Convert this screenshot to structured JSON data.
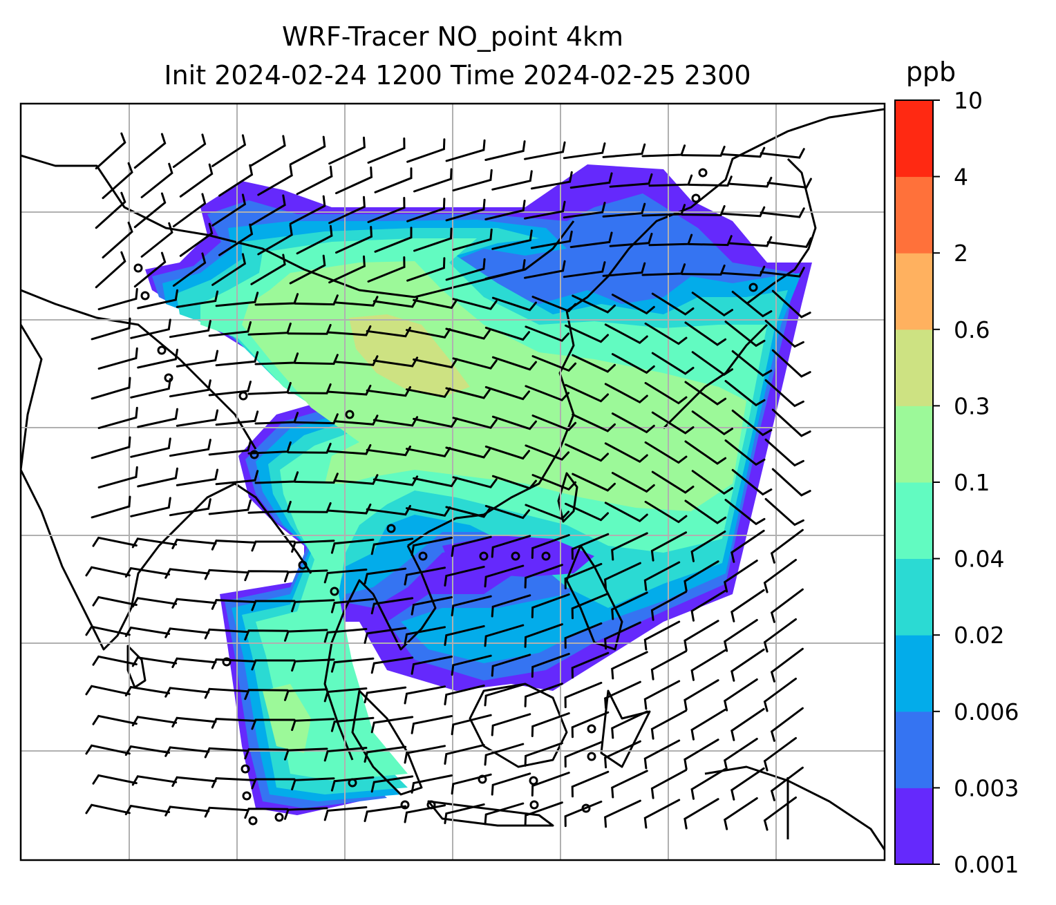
{
  "figure": {
    "title_line1": "WRF-Tracer NO_point 4km",
    "title_line2": "Init 2024-02-24 1200 Time 2024-02-25 2300"
  },
  "colorbar": {
    "unit": "ppb",
    "levels": [
      "0.001",
      "0.003",
      "0.006",
      "0.02",
      "0.04",
      "0.1",
      "0.3",
      "0.6",
      "2",
      "4",
      "10"
    ],
    "colors": [
      "#6529fc",
      "#3574f2",
      "#03acea",
      "#2bdad3",
      "#62fbc1",
      "#9cf999",
      "#cde282",
      "#ffb15f",
      "#ff713a",
      "#ff2912"
    ]
  },
  "chart_data": {
    "type": "heatmap",
    "variable": "NO tracer concentration with wind barbs",
    "unit": "ppb",
    "colorbar_ticks": [
      0.001,
      0.003,
      0.006,
      0.02,
      0.04,
      0.1,
      0.3,
      0.6,
      2,
      4,
      10
    ],
    "gridlines": true,
    "legend_placement": "right colorbar"
  }
}
